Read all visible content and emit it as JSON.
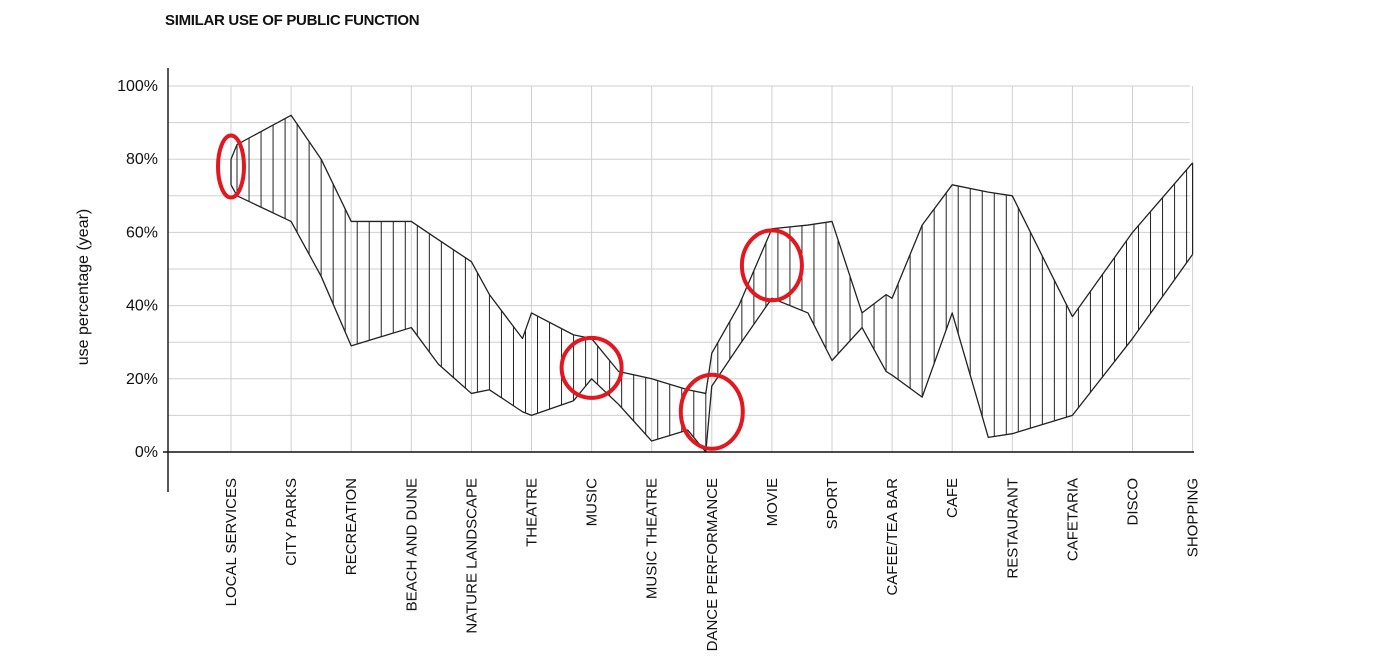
{
  "chart_data": {
    "type": "area",
    "title": "SIMILAR USE OF PUBLIC FUNCTION",
    "xlabel": "",
    "ylabel": "use percentage (year)",
    "ylim": [
      0,
      100
    ],
    "ytick_labels": [
      "0%",
      "20%",
      "40%",
      "60%",
      "80%",
      "100%"
    ],
    "grid": true,
    "x": [
      0,
      0.1,
      1,
      1.5,
      2,
      2.6,
      3,
      3.45,
      4,
      4.3,
      4.85,
      5,
      5.7,
      6,
      6.45,
      7,
      7.6,
      7.9,
      8,
      8.45,
      9,
      9.6,
      10,
      10.5,
      10.9,
      11,
      11.5,
      12,
      12.6,
      13,
      14,
      15,
      16
    ],
    "upper": [
      80,
      84,
      92,
      80,
      63,
      63,
      63,
      58,
      52,
      43,
      31,
      38,
      32,
      31,
      22,
      20,
      17,
      16,
      27,
      40,
      61,
      62,
      63,
      38,
      43,
      42,
      62,
      73,
      71,
      70,
      37,
      60,
      79
    ],
    "lower": [
      73,
      70,
      63,
      48,
      29,
      32,
      34,
      24,
      16,
      17,
      11,
      10,
      14,
      20,
      13,
      3,
      6,
      0,
      18,
      29,
      42,
      38,
      25,
      34,
      22,
      21,
      15,
      38,
      4,
      5,
      10,
      31,
      54
    ],
    "categories": [
      {
        "label": "LOCAL SERVICES",
        "highlight": true
      },
      {
        "label": "CITY PARKS",
        "highlight": false
      },
      {
        "label": "RECREATION",
        "highlight": false
      },
      {
        "label": "BEACH AND DUNE",
        "highlight": false
      },
      {
        "label": "NATURE LANDSCAPE",
        "highlight": false
      },
      {
        "label": "THEATRE",
        "highlight": false
      },
      {
        "label": "MUSIC",
        "highlight": true
      },
      {
        "label": "MUSIC THEATRE",
        "highlight": false
      },
      {
        "label": "DANCE PERFORMANCE",
        "highlight": true
      },
      {
        "label": "MOVIE",
        "highlight": true
      },
      {
        "label": "SPORT",
        "highlight": false
      },
      {
        "label": "CAFEE/TEA BAR",
        "highlight": false
      },
      {
        "label": "CAFE",
        "highlight": false
      },
      {
        "label": "RESTAURANT",
        "highlight": false
      },
      {
        "label": "CAFETARIA",
        "highlight": false
      },
      {
        "label": "DISCO",
        "highlight": false
      },
      {
        "label": "SHOPPING",
        "highlight": false
      }
    ],
    "markers": [
      {
        "x": 0,
        "y": 78
      },
      {
        "x": 6,
        "y": 23
      },
      {
        "x": 8,
        "y": 11
      },
      {
        "x": 9,
        "y": 51
      }
    ],
    "colors": {
      "line": "#222222",
      "grid": "#cfcfcf",
      "highlight": "#e3171f",
      "marker": "#e3171f"
    }
  }
}
